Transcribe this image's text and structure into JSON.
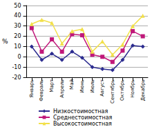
{
  "chart_data": {
    "type": "line",
    "y_label": "%",
    "categories": [
      "Январь",
      "Февраль",
      "Март",
      "Апрель",
      "Май",
      "Июнь",
      "Июль",
      "Август",
      "Сентябрь",
      "Октябрь",
      "Ноябрь",
      "Декабрь"
    ],
    "series": [
      {
        "name": "Низкостоимостная",
        "color": "#2b2b8f",
        "marker": "diamond",
        "values": [
          10,
          -3,
          3,
          -3,
          5,
          -1,
          -10,
          -12,
          -13,
          -3,
          11,
          10
        ]
      },
      {
        "name": "Среднестоимостная",
        "color": "#c0187a",
        "marker": "square",
        "values": [
          28,
          5,
          17,
          5,
          22,
          21,
          2,
          0,
          -5,
          6,
          25,
          20
        ]
      },
      {
        "name": "Высокостоимостная",
        "color": "#f2e04a",
        "marker": "triangle",
        "values": [
          32,
          36,
          33,
          13,
          25,
          27,
          5,
          15,
          2,
          12,
          30,
          40
        ]
      }
    ],
    "ylim": [
      -20,
      50
    ],
    "yticks": [
      -20,
      -10,
      0,
      10,
      20,
      30,
      40,
      50
    ],
    "grid": true,
    "legend": "bottom"
  }
}
